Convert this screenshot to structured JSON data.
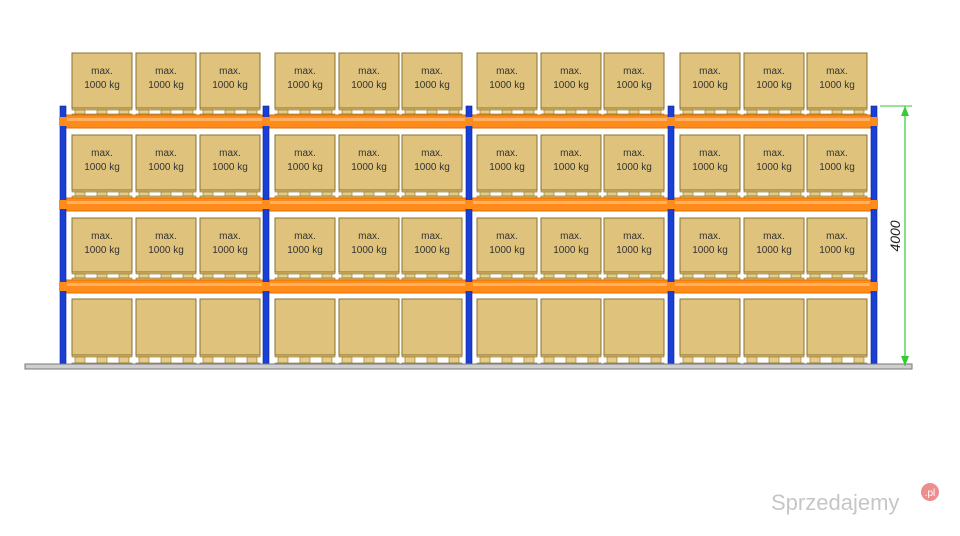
{
  "box_label": {
    "line1": "max.",
    "line2": "1000 kg"
  },
  "height_dimension": "4000",
  "watermark": {
    "brand": "Sprzedajemy",
    "tld": ".pl"
  }
}
